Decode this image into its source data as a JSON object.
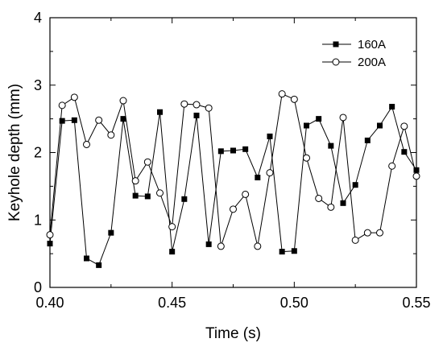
{
  "chart_data": {
    "type": "line",
    "xlabel": "Time (s)",
    "ylabel": "Keyhole depth (mm)",
    "xlim": [
      0.4,
      0.55
    ],
    "ylim": [
      0,
      4
    ],
    "x_ticks": [
      0.4,
      0.45,
      0.5,
      0.55
    ],
    "x_tick_labels": [
      "0.40",
      "0.45",
      "0.50",
      "0.55"
    ],
    "y_ticks": [
      0,
      1,
      2,
      3,
      4
    ],
    "y_tick_labels": [
      "0",
      "1",
      "2",
      "3",
      "4"
    ],
    "legend_position": "top-right",
    "grid": false,
    "series": [
      {
        "name": "160A",
        "marker": "filled-square",
        "color": "#000000",
        "x": [
          0.4,
          0.405,
          0.41,
          0.415,
          0.42,
          0.425,
          0.43,
          0.435,
          0.44,
          0.445,
          0.45,
          0.455,
          0.46,
          0.465,
          0.47,
          0.475,
          0.48,
          0.485,
          0.49,
          0.495,
          0.5,
          0.505,
          0.51,
          0.515,
          0.52,
          0.525,
          0.53,
          0.535,
          0.54,
          0.545,
          0.55
        ],
        "y": [
          0.65,
          2.47,
          2.48,
          0.43,
          0.33,
          0.81,
          2.5,
          1.36,
          1.35,
          2.6,
          0.53,
          1.31,
          2.55,
          0.64,
          2.02,
          2.03,
          2.05,
          1.63,
          2.24,
          0.53,
          0.54,
          2.4,
          2.5,
          2.1,
          1.25,
          1.52,
          2.18,
          2.4,
          2.68,
          2.01,
          1.74
        ]
      },
      {
        "name": "200A",
        "marker": "open-circle",
        "color": "#000000",
        "x": [
          0.4,
          0.405,
          0.41,
          0.415,
          0.42,
          0.425,
          0.43,
          0.435,
          0.44,
          0.445,
          0.45,
          0.455,
          0.46,
          0.465,
          0.47,
          0.475,
          0.48,
          0.485,
          0.49,
          0.495,
          0.5,
          0.505,
          0.51,
          0.515,
          0.52,
          0.525,
          0.53,
          0.535,
          0.54,
          0.545,
          0.55
        ],
        "y": [
          0.78,
          2.7,
          2.82,
          2.12,
          2.48,
          2.26,
          2.77,
          1.58,
          1.86,
          1.4,
          0.9,
          2.72,
          2.71,
          2.66,
          0.61,
          1.16,
          1.38,
          0.61,
          1.7,
          2.87,
          2.79,
          1.92,
          1.32,
          1.19,
          2.52,
          0.7,
          0.81,
          0.81,
          1.8,
          2.39,
          1.65
        ]
      }
    ]
  }
}
